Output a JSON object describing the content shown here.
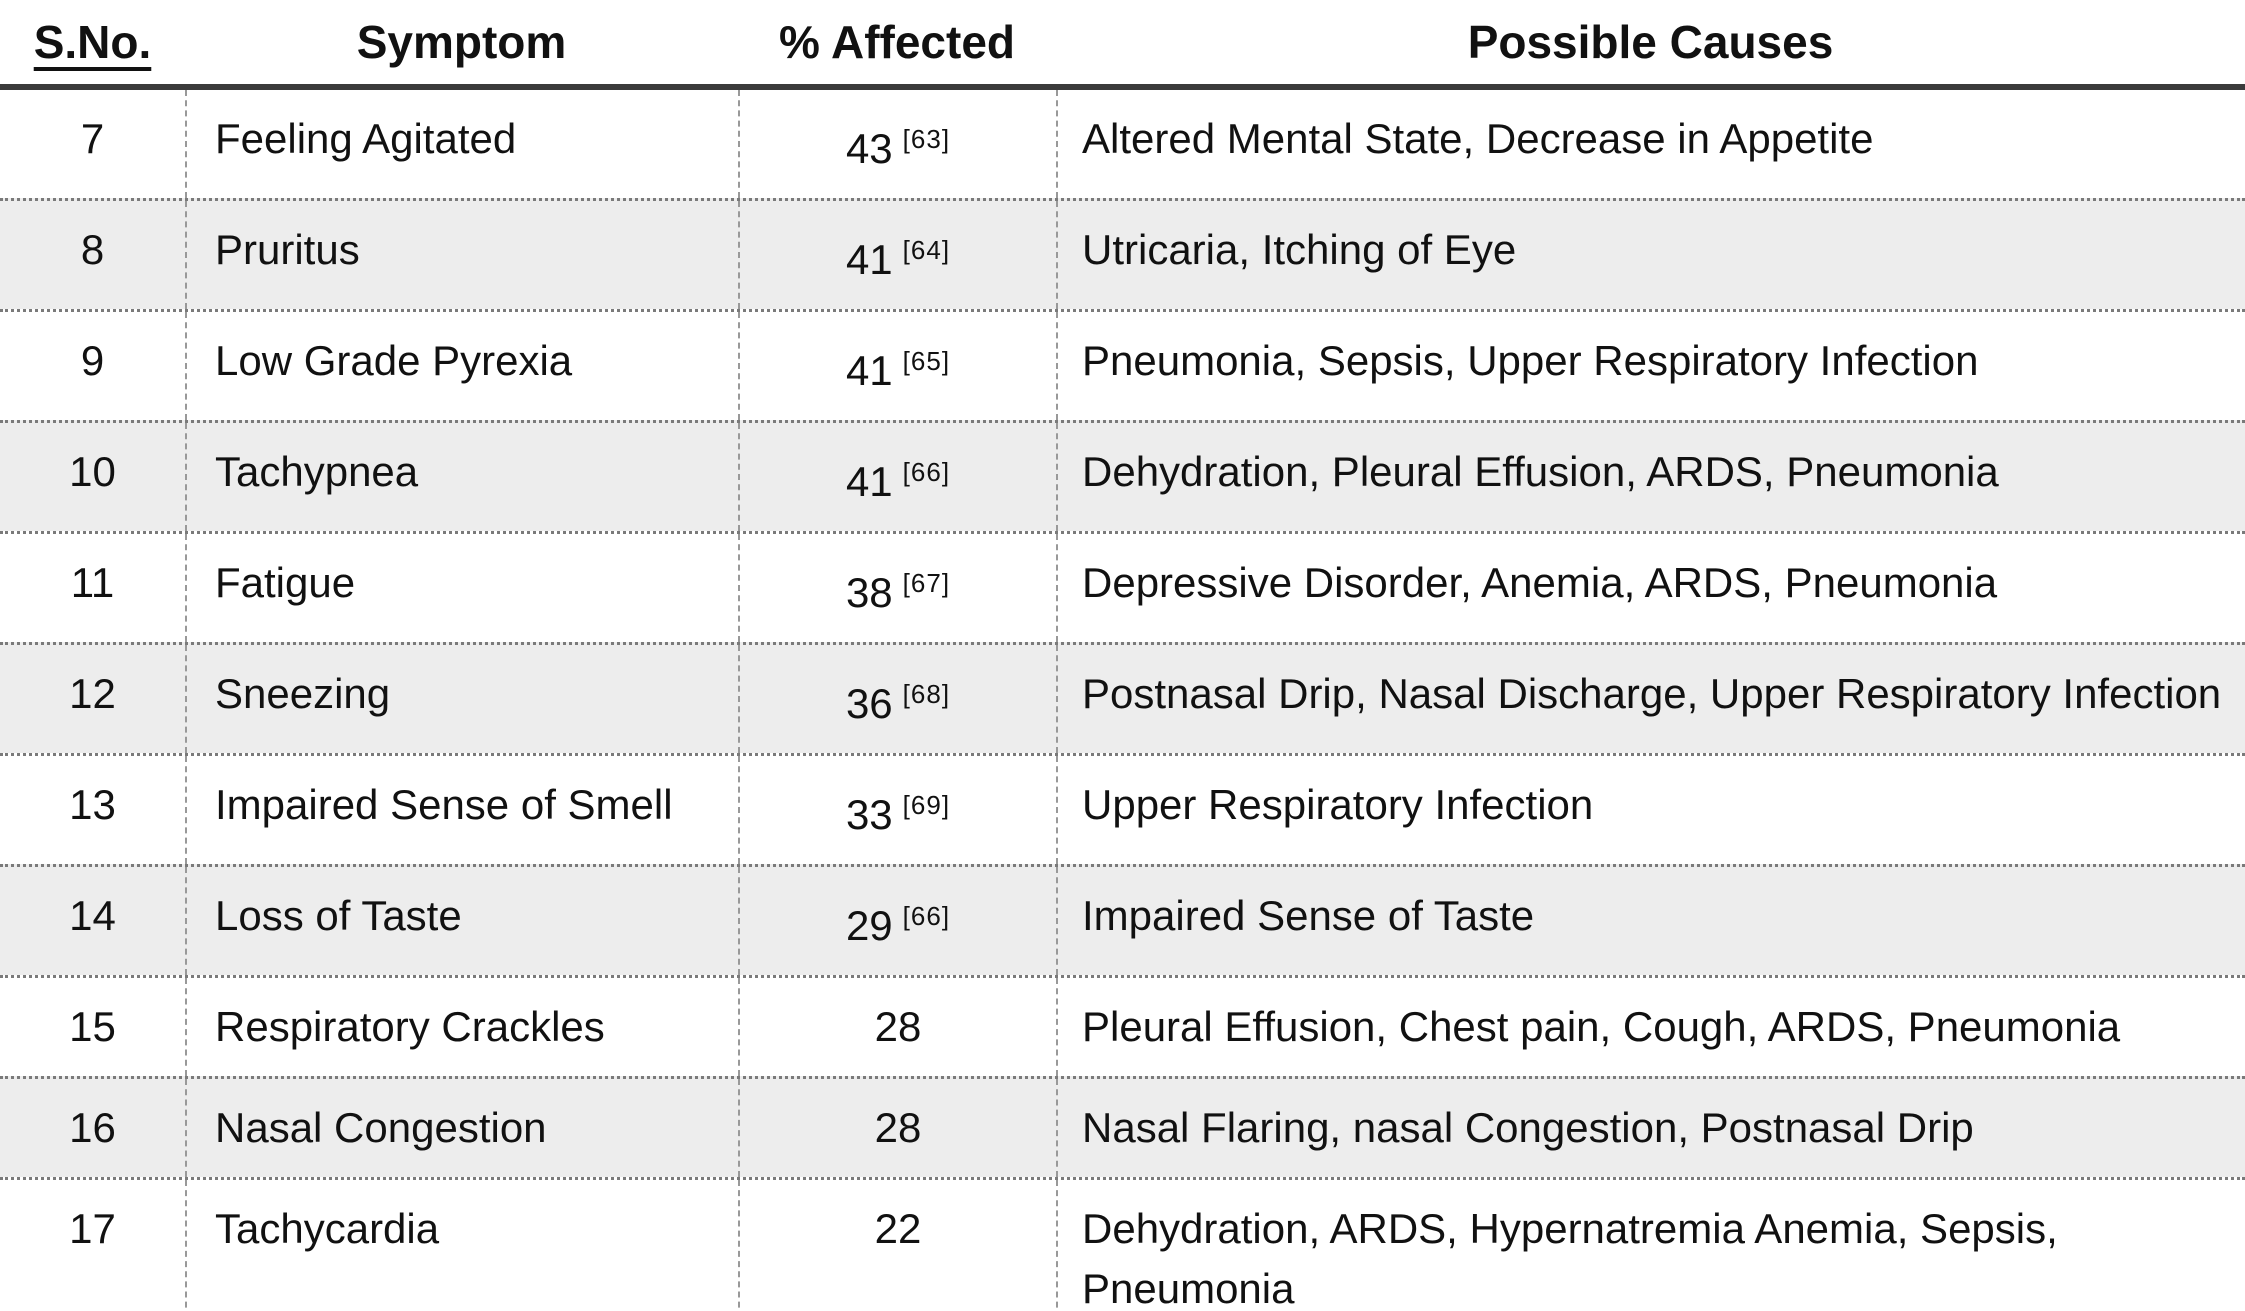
{
  "table": {
    "columns": [
      {
        "label": "S.No."
      },
      {
        "label": "Symptom"
      },
      {
        "label": "% Affected"
      },
      {
        "label": "Possible Causes"
      }
    ],
    "rows": [
      {
        "sno": "7",
        "symptom": "Feeling Agitated",
        "affected": "43",
        "citation": "[63]",
        "causes": "Altered Mental State, Decrease in Appetite"
      },
      {
        "sno": "8",
        "symptom": "Pruritus",
        "affected": "41",
        "citation": "[64]",
        "causes": "Utricaria, Itching of Eye"
      },
      {
        "sno": "9",
        "symptom": "Low Grade Pyrexia",
        "affected": "41",
        "citation": "[65]",
        "causes": "Pneumonia, Sepsis, Upper Respiratory Infection"
      },
      {
        "sno": "10",
        "symptom": "Tachypnea",
        "affected": "41",
        "citation": "[66]",
        "causes": "Dehydration, Pleural Effusion, ARDS, Pneumonia"
      },
      {
        "sno": "11",
        "symptom": "Fatigue",
        "affected": "38",
        "citation": "[67]",
        "causes": "Depressive Disorder, Anemia, ARDS, Pneumonia"
      },
      {
        "sno": "12",
        "symptom": "Sneezing",
        "affected": "36",
        "citation": "[68]",
        "causes": "Postnasal Drip, Nasal Discharge, Upper Respiratory Infection"
      },
      {
        "sno": "13",
        "symptom": "Impaired Sense of Smell",
        "affected": "33",
        "citation": "[69]",
        "causes": "Upper Respiratory Infection"
      },
      {
        "sno": "14",
        "symptom": "Loss of Taste",
        "affected": "29",
        "citation": "[66]",
        "causes": "Impaired Sense of Taste"
      },
      {
        "sno": "15",
        "symptom": "Respiratory Crackles",
        "affected": "28",
        "citation": "",
        "causes": "Pleural Effusion, Chest pain, Cough, ARDS, Pneumonia"
      },
      {
        "sno": "16",
        "symptom": "Nasal Congestion",
        "affected": "28",
        "citation": "",
        "causes": "Nasal Flaring, nasal Congestion, Postnasal Drip"
      },
      {
        "sno": "17",
        "symptom": "Tachycardia",
        "affected": "22",
        "citation": "",
        "causes": "Dehydration, ARDS, Hypernatremia Anemia, Sepsis, Pneumonia"
      }
    ],
    "colors": {
      "background": "#ffffff",
      "text": "#111111",
      "row_shade": "#ededed",
      "header_rule": "#3b3b3b",
      "column_divider_dashed": "#999999",
      "row_divider_dotted": "#7a7a7a"
    }
  }
}
